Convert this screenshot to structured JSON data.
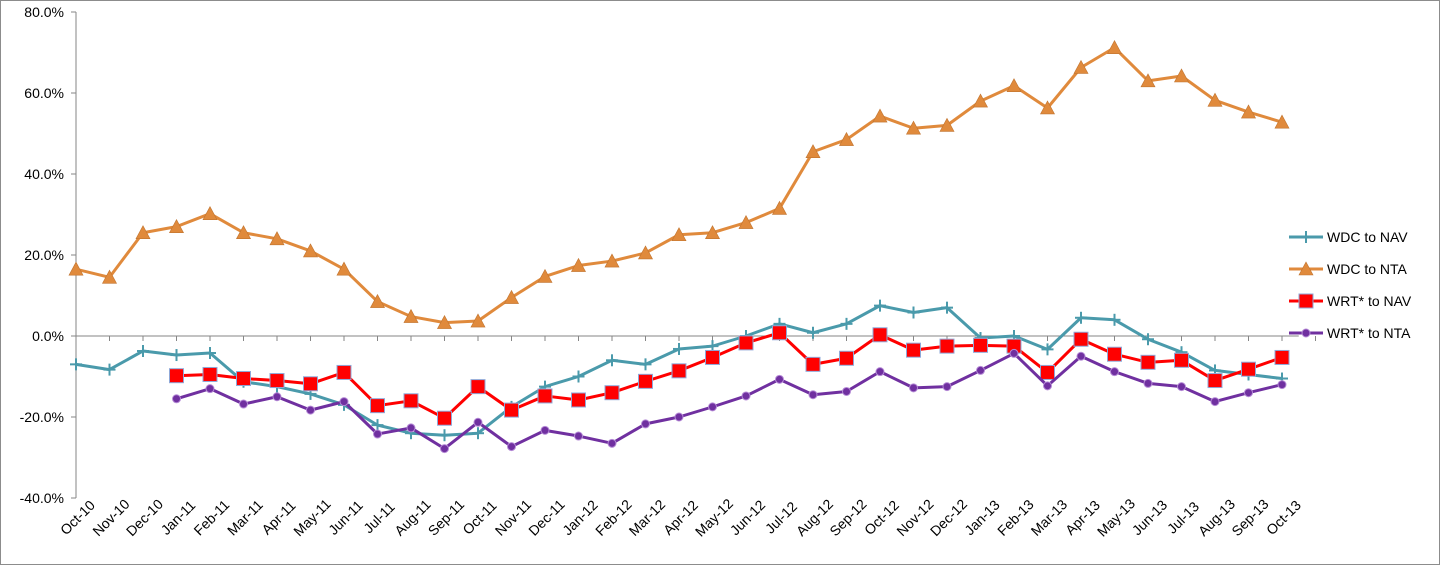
{
  "chart_data": {
    "type": "line",
    "title": "",
    "xlabel": "",
    "ylabel": "",
    "ylim": [
      -40,
      80
    ],
    "yticks": [
      -40,
      -20,
      0,
      20,
      40,
      60,
      80
    ],
    "ytick_labels": [
      "-40.0%",
      "-20.0%",
      "0.0%",
      "20.0%",
      "40.0%",
      "60.0%",
      "80.0%"
    ],
    "legend_position": "right",
    "categories": [
      "Oct-10",
      "Nov-10",
      "Dec-10",
      "Jan-11",
      "Feb-11",
      "Mar-11",
      "Apr-11",
      "May-11",
      "Jun-11",
      "Jul-11",
      "Aug-11",
      "Sep-11",
      "Oct-11",
      "Nov-11",
      "Dec-11",
      "Jan-12",
      "Feb-12",
      "Mar-12",
      "Apr-12",
      "May-12",
      "Jun-12",
      "Jul-12",
      "Aug-12",
      "Sep-12",
      "Oct-12",
      "Nov-12",
      "Dec-12",
      "Jan-13",
      "Feb-13",
      "Mar-13",
      "Apr-13",
      "May-13",
      "Jun-13",
      "Jul-13",
      "Aug-13",
      "Sep-13",
      "Oct-13"
    ],
    "series": [
      {
        "name": "WDC to NAV",
        "color": "#4a9aab",
        "marker": "plus",
        "values": [
          -7,
          -8.3,
          -3.7,
          -4.7,
          -4.2,
          -11.3,
          -12.5,
          -14.3,
          -17,
          -22,
          -24,
          -24.5,
          -24,
          -17.5,
          -12.5,
          -10,
          -6,
          -7,
          -3.2,
          -2.5,
          0,
          3,
          0.8,
          3,
          7.5,
          5.8,
          7,
          -0.5,
          0,
          -3.3,
          4.5,
          4,
          -0.8,
          -4,
          -8.5,
          -9.5,
          -10.5
        ]
      },
      {
        "name": "WDC to NTA",
        "color": "#e08a3c",
        "marker": "triangle",
        "values": [
          16.5,
          14.5,
          25.5,
          27,
          30.2,
          25.5,
          24,
          21,
          16.5,
          8.5,
          4.8,
          3.3,
          3.7,
          9.5,
          14.7,
          17.4,
          18.5,
          20.5,
          25,
          25.5,
          28,
          31.5,
          45.5,
          48.5,
          54.3,
          51.3,
          52,
          58,
          61.8,
          56.3,
          66.3,
          71.2,
          63,
          64.2,
          58.2,
          55.3,
          52.8
        ]
      },
      {
        "name": "WRT* to NAV",
        "color": "#ff0000",
        "marker": "square",
        "values": [
          null,
          null,
          null,
          -9.8,
          -9.5,
          -10.5,
          -11,
          -11.8,
          -9,
          -17.2,
          -16,
          -20.3,
          -12.5,
          -18.3,
          -14.8,
          -15.8,
          -14,
          -11.2,
          -8.6,
          -5.3,
          -1.7,
          0.8,
          -7,
          -5.5,
          0.3,
          -3.5,
          -2.5,
          -2.3,
          -2.5,
          -9,
          -0.8,
          -4.5,
          -6.5,
          -6,
          -11,
          -8.2,
          -5.3
        ]
      },
      {
        "name": "WRT* to NTA",
        "color": "#7030a0",
        "marker": "circle",
        "values": [
          null,
          null,
          null,
          -15.5,
          -13,
          -16.8,
          -15,
          -18.3,
          -16.2,
          -24.2,
          -22.7,
          -27.8,
          -21.3,
          -27.3,
          -23.3,
          -24.7,
          -26.5,
          -21.7,
          -20,
          -17.5,
          -14.8,
          -10.7,
          -14.5,
          -13.7,
          -8.8,
          -12.8,
          -12.5,
          -8.5,
          -4.3,
          -12.3,
          -5,
          -8.8,
          -11.7,
          -12.5,
          -16.2,
          -14,
          -12
        ]
      }
    ]
  }
}
